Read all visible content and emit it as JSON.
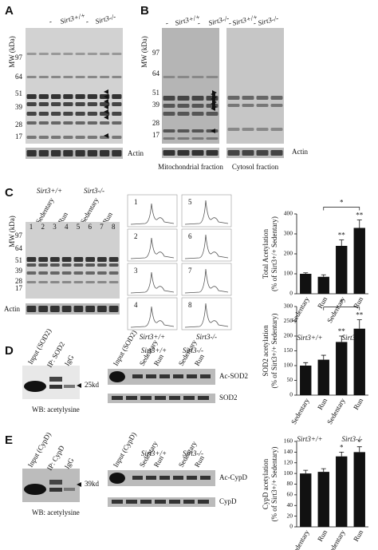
{
  "panel_a": {
    "label": "A",
    "y_axis": "MW (kDa)",
    "mw": [
      97,
      64,
      51,
      39,
      28,
      17
    ],
    "lanes": [
      "-",
      "Sirt3+/+",
      "-",
      "Sirt3-/-"
    ],
    "loading": "Actin"
  },
  "panel_b": {
    "label": "B",
    "y_axis": "MW (kDa)",
    "mw": [
      97,
      64,
      51,
      39,
      28,
      17
    ],
    "lanes": [
      "-",
      "Sirt3+/+",
      "-",
      "Sirt3-/-"
    ],
    "lanes_cytosol": [
      "-",
      "Sirt3+/+",
      "-",
      "Sirt3-/-"
    ],
    "fractions": [
      "Mitochondrial fraction",
      "Cytosol fraction"
    ],
    "loading": "Actin"
  },
  "panel_c": {
    "label": "C",
    "y_axis": "MW (kDa)",
    "groups": [
      "Sirt3+/+",
      "Sirt3-/-"
    ],
    "conditions": [
      "Sedentary",
      "Run",
      "Sedentary",
      "Run"
    ],
    "lane_numbers": [
      "1",
      "2",
      "3",
      "4",
      "5",
      "6",
      "7",
      "8"
    ],
    "mw": [
      97,
      64,
      51,
      39,
      28,
      17
    ],
    "loading": "Actin",
    "trace_numbers": [
      "1",
      "2",
      "3",
      "4",
      "5",
      "6",
      "7",
      "8"
    ],
    "trace_groups": [
      "Sirt3+/+",
      "Sirt3-/-"
    ]
  },
  "panel_d": {
    "label": "D",
    "ip_labels": [
      "Input (SOD2)",
      "IP: SOD2",
      "IgG"
    ],
    "size": "25kd",
    "wb": "WB: acetylysine",
    "input": "Input (SOD2)",
    "groups": [
      "Sirt3+/+",
      "Sirt3-/-"
    ],
    "conditions": [
      "Sedentary",
      "Run",
      "Sedentary",
      "Run"
    ],
    "bands": [
      "Ac-SOD2",
      "SOD2"
    ]
  },
  "panel_e": {
    "label": "E",
    "ip_labels": [
      "Input (CypD)",
      "IP: CypD",
      "IgG"
    ],
    "size": "39kd",
    "wb": "WB: acetylysine",
    "input": "Input (CypD)",
    "groups": [
      "Sirt3+/+",
      "Sirt3-/-"
    ],
    "conditions": [
      "Sedentary",
      "Run",
      "Sedentary",
      "Run"
    ],
    "bands": [
      "Ac-CypD",
      "CypD"
    ]
  },
  "chart_data": [
    {
      "type": "bar",
      "ylabel": [
        "Total Acetylation",
        "(% of Sirt3+/+ Sedentary)"
      ],
      "categories": [
        "Sedentary",
        "Run",
        "Sedentary",
        "Run"
      ],
      "groups": [
        "Sirt3+/+",
        "Sirt3-/-"
      ],
      "values": [
        100,
        85,
        240,
        330
      ],
      "errors": [
        5,
        10,
        30,
        40
      ],
      "significance": [
        null,
        null,
        "**",
        "**"
      ],
      "comparison": "*",
      "color": "#111111",
      "ylim": [
        0,
        400
      ],
      "yticks": [
        0,
        100,
        200,
        300,
        400
      ]
    },
    {
      "type": "bar",
      "ylabel": [
        "SOD2 acetylation",
        "(% of Sirt3+/+ Sedentary)"
      ],
      "categories": [
        "Sedentary",
        "Run",
        "Sedentary",
        "Run"
      ],
      "groups": [
        "Sirt3+/+",
        "Sirt3-/-"
      ],
      "values": [
        100,
        120,
        180,
        225
      ],
      "errors": [
        10,
        15,
        20,
        30
      ],
      "significance": [
        null,
        null,
        "**",
        "**"
      ],
      "comparison": "*",
      "color": "#111111",
      "ylim": [
        0,
        300
      ],
      "yticks": [
        0,
        50,
        100,
        150,
        200,
        250,
        300
      ]
    },
    {
      "type": "bar",
      "ylabel": [
        "CypD acetylation",
        "(% of Sirt3+/+ Sedentary)"
      ],
      "categories": [
        "Sedentary",
        "Run",
        "Sedentary",
        "Run"
      ],
      "groups": [
        "Sirt3+/+",
        "Sirt3-/-"
      ],
      "values": [
        100,
        103,
        132,
        140
      ],
      "errors": [
        6,
        6,
        8,
        10
      ],
      "significance": [
        null,
        null,
        "*",
        "*"
      ],
      "color": "#111111",
      "ylim": [
        0,
        160
      ],
      "yticks": [
        0,
        20,
        40,
        60,
        80,
        100,
        120,
        140,
        160
      ]
    }
  ]
}
